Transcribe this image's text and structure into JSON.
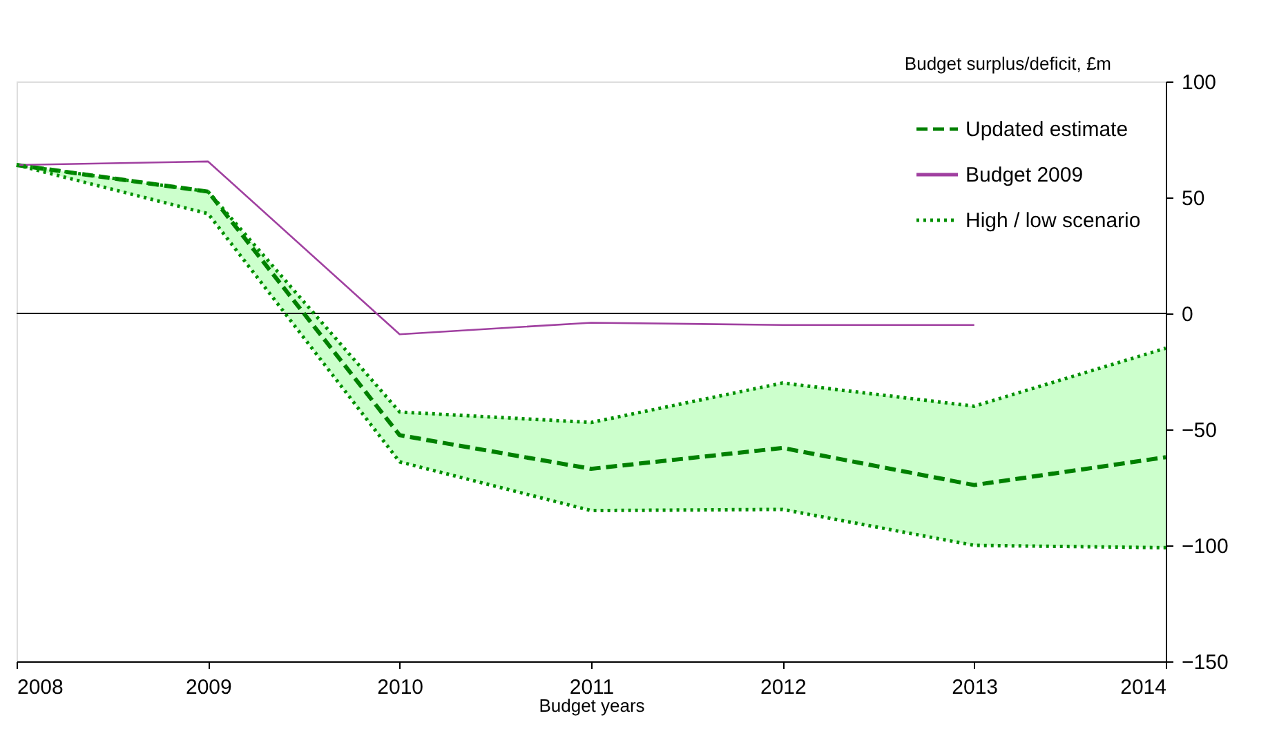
{
  "chart_data": {
    "type": "line",
    "xlabel": "Budget years",
    "ylabel": "Budget surplus/deficit, £m",
    "x": [
      2008,
      2009,
      2010,
      2011,
      2012,
      2013,
      2014
    ],
    "xlim": [
      2008,
      2014
    ],
    "xticks": [
      2008,
      2009,
      2010,
      2011,
      2012,
      2013,
      2014
    ],
    "ylim": [
      -150,
      100
    ],
    "yticks": [
      -150,
      -100,
      -50,
      0,
      50,
      100
    ],
    "grid": false,
    "legend": "top right",
    "marker": "none",
    "ref_lines": [
      {
        "axis": "y",
        "value": 0,
        "color": "#000000",
        "line_style": "solid"
      }
    ],
    "series": [
      {
        "name": "Updated estimate",
        "color": "#008000",
        "line_style": "dashed",
        "values": [
          64,
          52.5,
          -52.5,
          -67,
          -58,
          -74,
          -62
        ],
        "lower": [
          64,
          43,
          -64,
          -85,
          -84.5,
          -100,
          -101
        ],
        "upper": [
          64,
          52.5,
          -42.5,
          -47,
          -30,
          -40,
          -15
        ]
      },
      {
        "name": "Budget 2009",
        "color": "#a040a0",
        "line_style": "solid",
        "values": [
          64,
          65.5,
          -9,
          -4,
          -5,
          -5
        ],
        "x": [
          2008,
          2009,
          2010,
          2011,
          2012,
          2013
        ]
      },
      {
        "name": "High / low scenario",
        "color": "#009000",
        "line_style": "dotted",
        "values": [
          64,
          52.5,
          -42.5,
          -47,
          -30,
          -40,
          -15
        ]
      },
      {
        "color": "#009000",
        "line_style": "dotted",
        "values": [
          64,
          43,
          -64,
          -85,
          -84.5,
          -100,
          -101
        ]
      }
    ]
  }
}
